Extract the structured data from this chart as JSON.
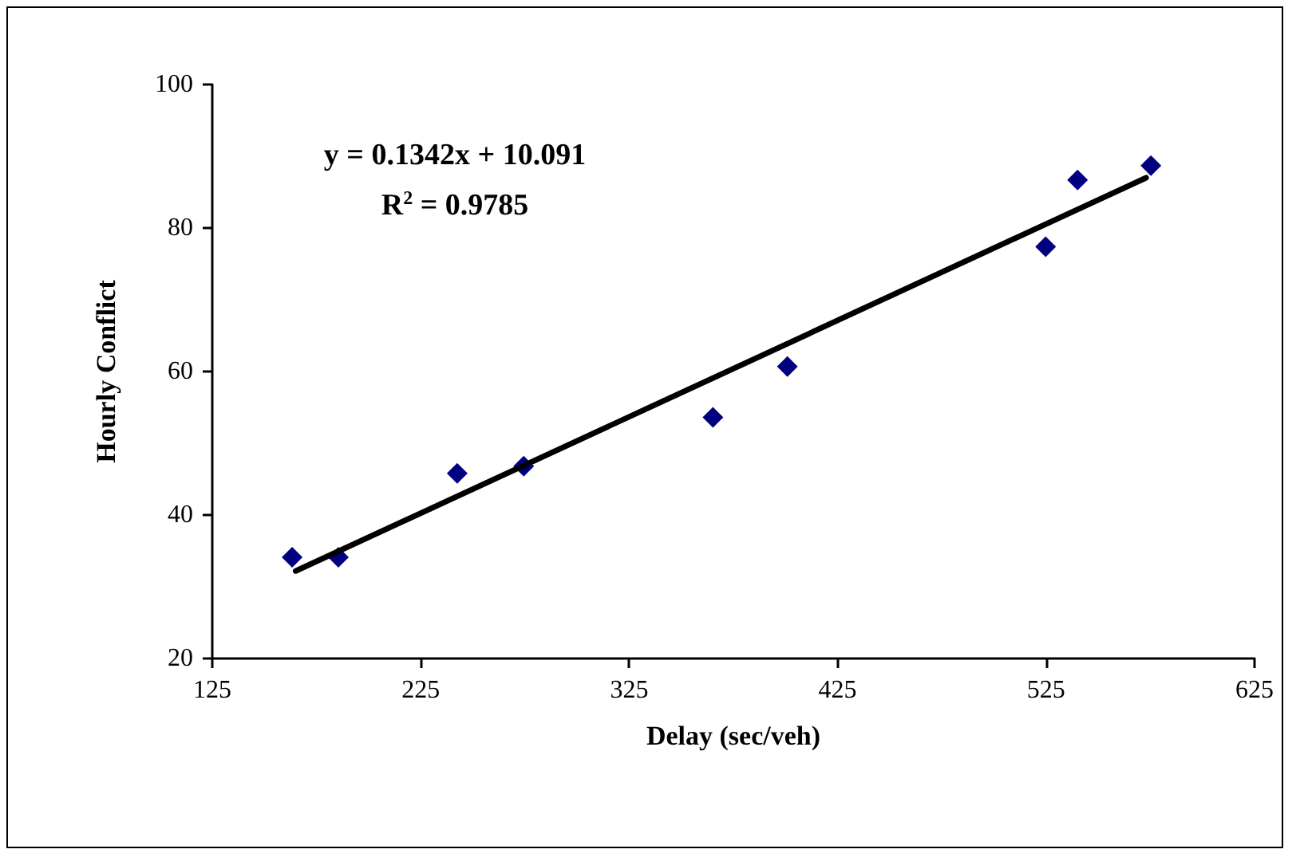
{
  "chart_data": {
    "type": "scatter",
    "xlabel": "Delay (sec/veh)",
    "ylabel": "Hourly Conflict",
    "x": [
      163.3,
      185.5,
      242.5,
      274.4,
      365.2,
      400.9,
      524.8,
      540.1,
      575.3
    ],
    "series": [
      {
        "color": "#000080",
        "values": [
          34.1,
          34.1,
          45.8,
          46.8,
          53.6,
          60.7,
          77.4,
          86.7,
          88.7
        ],
        "marker": "diamond"
      },
      {
        "type": "line",
        "color": "#000000",
        "x": [
          165,
          573
        ],
        "values": [
          32.2,
          87.0
        ],
        "marker": "none",
        "line_style": "solid"
      }
    ],
    "annotations": [
      "y = 0.1342x + 10.091",
      "R$^{2}$ = 0.9785"
    ],
    "xlim": [
      125,
      625
    ],
    "xticks": [
      125,
      225,
      325,
      425,
      525,
      625
    ],
    "ylim": [
      20,
      100
    ],
    "yticks": [
      20,
      40,
      60,
      80,
      100
    ]
  }
}
